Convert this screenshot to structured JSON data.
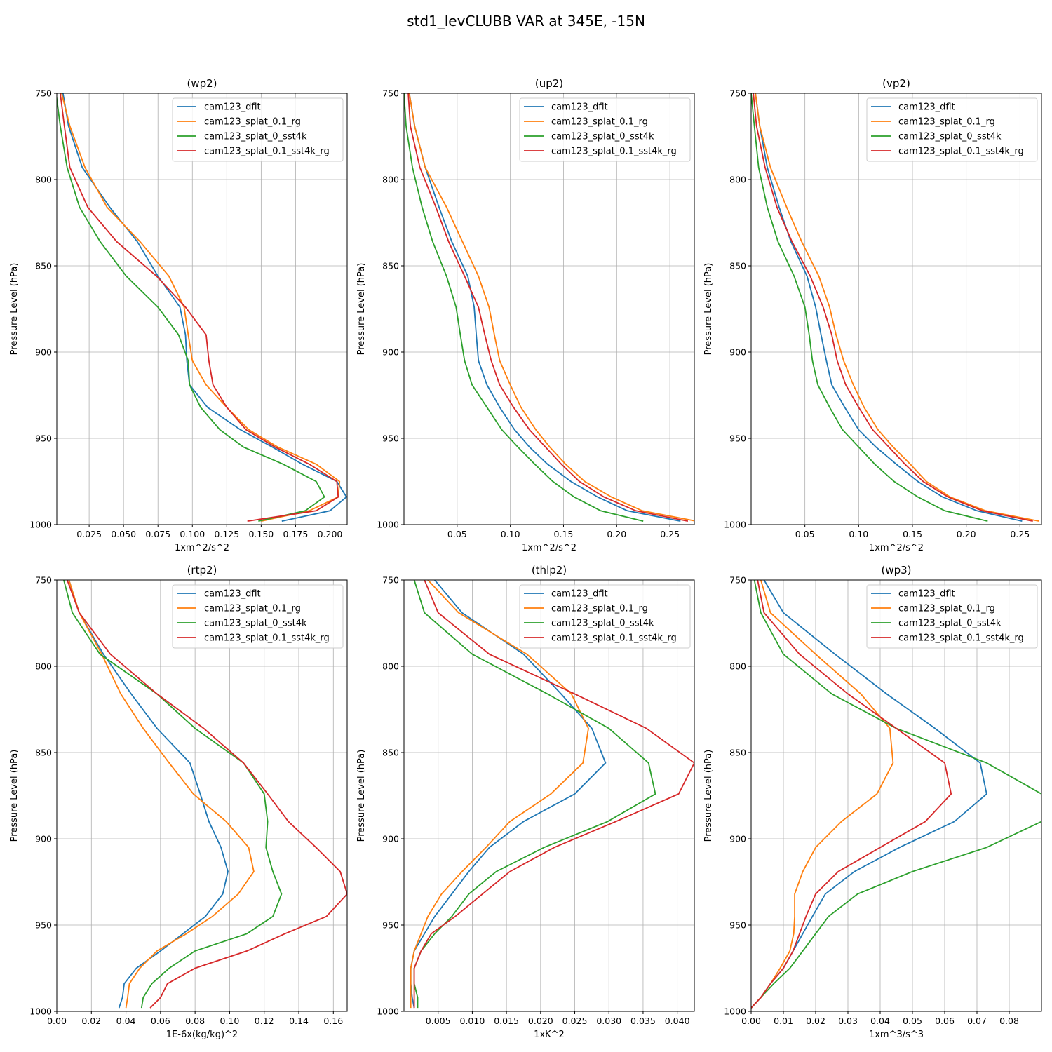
{
  "figure": {
    "title": "std1_levCLUBB VAR at 345E, -15N"
  },
  "series_names": [
    "cam123_dflt",
    "cam123_splat_0.1_rg",
    "cam123_splat_0_sst4k",
    "cam123_splat_0.1_sst4k_rg"
  ],
  "colors": {
    "cam123_dflt": "#1f77b4",
    "cam123_splat_0.1_rg": "#ff7f0e",
    "cam123_splat_0_sst4k": "#2ca02c",
    "cam123_splat_0.1_sst4k_rg": "#d62728"
  },
  "chart_data": [
    {
      "type": "line",
      "title": "(wp2)",
      "xlabel": "1xm^2/s^2",
      "ylabel": "Pressure Level (hPa)",
      "xlim": [
        0.0015,
        0.2125
      ],
      "ylim": [
        1000,
        750
      ],
      "xticks": [
        "0.025",
        "0.050",
        "0.075",
        "0.100",
        "0.125",
        "0.150",
        "0.175",
        "0.200"
      ],
      "xtick_values": [
        0.025,
        0.05,
        0.075,
        0.1,
        0.125,
        0.15,
        0.175,
        0.2
      ],
      "yticks": [
        "750",
        "800",
        "850",
        "900",
        "950",
        "1000"
      ],
      "ytick_values": [
        750,
        800,
        850,
        900,
        950,
        1000
      ],
      "grid": true,
      "legend": "top-right",
      "y": [
        750,
        769,
        793,
        816,
        836,
        856,
        874,
        890,
        905,
        919,
        932,
        945,
        955,
        965,
        975,
        984,
        992,
        998
      ],
      "series": [
        {
          "name": "cam123_dflt",
          "values": [
            0.006,
            0.01,
            0.02,
            0.04,
            0.06,
            0.075,
            0.091,
            0.095,
            0.096,
            0.098,
            0.111,
            0.135,
            0.158,
            0.18,
            0.205,
            0.212,
            0.2,
            0.165
          ]
        },
        {
          "name": "cam123_splat_0.1_rg",
          "values": [
            0.005,
            0.011,
            0.022,
            0.038,
            0.062,
            0.083,
            0.094,
            0.097,
            0.1,
            0.11,
            0.125,
            0.141,
            0.162,
            0.19,
            0.207,
            0.206,
            0.185,
            0.15
          ]
        },
        {
          "name": "cam123_splat_0_sst4k",
          "values": [
            0.001,
            0.004,
            0.009,
            0.018,
            0.033,
            0.052,
            0.075,
            0.09,
            0.097,
            0.098,
            0.106,
            0.12,
            0.137,
            0.166,
            0.19,
            0.196,
            0.182,
            0.148
          ]
        },
        {
          "name": "cam123_splat_0.1_sst4k_rg",
          "values": [
            0.004,
            0.007,
            0.011,
            0.024,
            0.045,
            0.074,
            0.095,
            0.11,
            0.112,
            0.115,
            0.125,
            0.139,
            0.16,
            0.185,
            0.205,
            0.206,
            0.19,
            0.14
          ]
        }
      ]
    },
    {
      "type": "line",
      "title": "(up2)",
      "xlabel": "1xm^2/s^2",
      "ylabel": "Pressure Level (hPa)",
      "xlim": [
        0.0,
        0.273
      ],
      "ylim": [
        1000,
        750
      ],
      "xticks": [
        "0.05",
        "0.10",
        "0.15",
        "0.20",
        "0.25"
      ],
      "xtick_values": [
        0.05,
        0.1,
        0.15,
        0.2,
        0.25
      ],
      "yticks": [
        "750",
        "800",
        "850",
        "900",
        "950",
        "1000"
      ],
      "ytick_values": [
        750,
        800,
        850,
        900,
        950,
        1000
      ],
      "grid": true,
      "legend": "top-right",
      "y": [
        750,
        769,
        793,
        816,
        836,
        856,
        874,
        890,
        905,
        919,
        932,
        945,
        955,
        965,
        975,
        984,
        992,
        998
      ],
      "series": [
        {
          "name": "cam123_dflt",
          "values": [
            0.005,
            0.01,
            0.02,
            0.033,
            0.045,
            0.06,
            0.066,
            0.068,
            0.07,
            0.078,
            0.09,
            0.104,
            0.118,
            0.135,
            0.157,
            0.182,
            0.21,
            0.26
          ]
        },
        {
          "name": "cam123_splat_0.1_rg",
          "values": [
            0.005,
            0.01,
            0.02,
            0.04,
            0.055,
            0.07,
            0.08,
            0.085,
            0.09,
            0.1,
            0.11,
            0.124,
            0.137,
            0.152,
            0.17,
            0.195,
            0.224,
            0.275
          ]
        },
        {
          "name": "cam123_splat_0_sst4k",
          "values": [
            0.0,
            0.002,
            0.008,
            0.017,
            0.027,
            0.04,
            0.049,
            0.053,
            0.057,
            0.064,
            0.078,
            0.092,
            0.107,
            0.123,
            0.14,
            0.16,
            0.185,
            0.225
          ]
        },
        {
          "name": "cam123_splat_0.1_sst4k_rg",
          "values": [
            0.004,
            0.006,
            0.015,
            0.03,
            0.042,
            0.057,
            0.07,
            0.076,
            0.082,
            0.09,
            0.103,
            0.118,
            0.133,
            0.148,
            0.165,
            0.188,
            0.218,
            0.267
          ]
        }
      ]
    },
    {
      "type": "line",
      "title": "(vp2)",
      "xlabel": "1xm^2/s^2",
      "ylabel": "Pressure Level (hPa)",
      "xlim": [
        0.0,
        0.27
      ],
      "ylim": [
        1000,
        750
      ],
      "xticks": [
        "0.05",
        "0.10",
        "0.15",
        "0.20",
        "0.25"
      ],
      "xtick_values": [
        0.05,
        0.1,
        0.15,
        0.2,
        0.25
      ],
      "yticks": [
        "750",
        "800",
        "850",
        "900",
        "950",
        "1000"
      ],
      "ytick_values": [
        750,
        800,
        850,
        900,
        950,
        1000
      ],
      "grid": true,
      "legend": "top-right",
      "y": [
        750,
        769,
        793,
        816,
        836,
        856,
        874,
        890,
        905,
        919,
        932,
        945,
        955,
        965,
        975,
        984,
        992,
        998
      ],
      "series": [
        {
          "name": "cam123_dflt",
          "values": [
            0.004,
            0.008,
            0.015,
            0.026,
            0.037,
            0.052,
            0.06,
            0.065,
            0.07,
            0.075,
            0.087,
            0.1,
            0.116,
            0.135,
            0.155,
            0.178,
            0.21,
            0.252
          ]
        },
        {
          "name": "cam123_splat_0.1_rg",
          "values": [
            0.004,
            0.008,
            0.018,
            0.033,
            0.047,
            0.063,
            0.073,
            0.079,
            0.086,
            0.095,
            0.105,
            0.118,
            0.132,
            0.148,
            0.163,
            0.185,
            0.218,
            0.268
          ]
        },
        {
          "name": "cam123_splat_0_sst4k",
          "values": [
            0.0,
            0.003,
            0.007,
            0.015,
            0.025,
            0.04,
            0.05,
            0.054,
            0.057,
            0.062,
            0.073,
            0.085,
            0.1,
            0.115,
            0.133,
            0.155,
            0.18,
            0.22
          ]
        },
        {
          "name": "cam123_splat_0.1_sst4k_rg",
          "values": [
            0.002,
            0.005,
            0.013,
            0.024,
            0.038,
            0.055,
            0.067,
            0.075,
            0.08,
            0.088,
            0.1,
            0.113,
            0.128,
            0.143,
            0.16,
            0.183,
            0.215,
            0.262
          ]
        }
      ]
    },
    {
      "type": "line",
      "title": "(rtp2)",
      "xlabel": "1E-6x(kg/kg)^2",
      "ylabel": "Pressure Level (hPa)",
      "xlim": [
        0.0,
        0.168
      ],
      "ylim": [
        1000,
        750
      ],
      "xticks": [
        "0.00",
        "0.02",
        "0.04",
        "0.06",
        "0.08",
        "0.10",
        "0.12",
        "0.14",
        "0.16"
      ],
      "xtick_values": [
        0.0,
        0.02,
        0.04,
        0.06,
        0.08,
        0.1,
        0.12,
        0.14,
        0.16
      ],
      "yticks": [
        "750",
        "800",
        "850",
        "900",
        "950",
        "1000"
      ],
      "ytick_values": [
        750,
        800,
        850,
        900,
        950,
        1000
      ],
      "grid": true,
      "legend": "top-right",
      "y": [
        750,
        769,
        793,
        816,
        836,
        856,
        874,
        890,
        905,
        919,
        932,
        945,
        955,
        965,
        975,
        984,
        992,
        998
      ],
      "series": [
        {
          "name": "cam123_dflt",
          "values": [
            0.007,
            0.013,
            0.027,
            0.043,
            0.058,
            0.077,
            0.083,
            0.088,
            0.095,
            0.099,
            0.096,
            0.086,
            0.073,
            0.06,
            0.046,
            0.039,
            0.038,
            0.036
          ]
        },
        {
          "name": "cam123_splat_0.1_rg",
          "values": [
            0.007,
            0.013,
            0.026,
            0.037,
            0.05,
            0.065,
            0.079,
            0.098,
            0.111,
            0.114,
            0.105,
            0.09,
            0.075,
            0.058,
            0.048,
            0.042,
            0.041,
            0.04
          ]
        },
        {
          "name": "cam123_splat_0_sst4k",
          "values": [
            0.004,
            0.009,
            0.025,
            0.058,
            0.08,
            0.108,
            0.12,
            0.122,
            0.121,
            0.125,
            0.13,
            0.125,
            0.11,
            0.08,
            0.065,
            0.055,
            0.05,
            0.049
          ]
        },
        {
          "name": "cam123_splat_0.1_sst4k_rg",
          "values": [
            0.006,
            0.013,
            0.031,
            0.058,
            0.085,
            0.108,
            0.122,
            0.134,
            0.15,
            0.164,
            0.168,
            0.156,
            0.132,
            0.11,
            0.08,
            0.064,
            0.06,
            0.054
          ]
        }
      ]
    },
    {
      "type": "line",
      "title": "(thlp2)",
      "xlabel": "1xK^2",
      "ylabel": "Pressure Level (hPa)",
      "xlim": [
        0.0,
        0.0425
      ],
      "ylim": [
        1000,
        750
      ],
      "xticks": [
        "0.005",
        "0.010",
        "0.015",
        "0.020",
        "0.025",
        "0.030",
        "0.035",
        "0.040"
      ],
      "xtick_values": [
        0.005,
        0.01,
        0.015,
        0.02,
        0.025,
        0.03,
        0.035,
        0.04
      ],
      "yticks": [
        "750",
        "800",
        "850",
        "900",
        "950",
        "1000"
      ],
      "ytick_values": [
        750,
        800,
        850,
        900,
        950,
        1000
      ],
      "grid": true,
      "legend": "top-right",
      "y": [
        750,
        769,
        793,
        816,
        836,
        856,
        874,
        890,
        905,
        919,
        932,
        945,
        955,
        965,
        975,
        984,
        992,
        998
      ],
      "series": [
        {
          "name": "cam123_dflt",
          "values": [
            0.0045,
            0.0085,
            0.0175,
            0.023,
            0.0275,
            0.0295,
            0.025,
            0.0175,
            0.0125,
            0.0095,
            0.007,
            0.0045,
            0.003,
            0.0015,
            0.001,
            0.001,
            0.0012,
            0.0015
          ]
        },
        {
          "name": "cam123_splat_0.1_rg",
          "values": [
            0.0035,
            0.008,
            0.018,
            0.0245,
            0.027,
            0.0262,
            0.0215,
            0.0155,
            0.012,
            0.0085,
            0.0055,
            0.0035,
            0.0025,
            0.0015,
            0.001,
            0.001,
            0.001,
            0.001
          ]
        },
        {
          "name": "cam123_splat_0_sst4k",
          "values": [
            0.0015,
            0.003,
            0.01,
            0.021,
            0.03,
            0.0358,
            0.0368,
            0.0298,
            0.0205,
            0.0135,
            0.0095,
            0.007,
            0.0045,
            0.0025,
            0.0015,
            0.0015,
            0.002,
            0.002
          ]
        },
        {
          "name": "cam123_splat_0.1_sst4k_rg",
          "values": [
            0.003,
            0.005,
            0.0125,
            0.025,
            0.0355,
            0.0425,
            0.0402,
            0.031,
            0.022,
            0.0155,
            0.0115,
            0.0075,
            0.004,
            0.0025,
            0.0015,
            0.0015,
            0.0015,
            0.0015
          ]
        }
      ]
    },
    {
      "type": "line",
      "title": "(wp3)",
      "xlabel": "1xm^3/s^3",
      "ylabel": "Pressure Level (hPa)",
      "xlim": [
        0.0,
        0.09
      ],
      "ylim": [
        1000,
        750
      ],
      "xticks": [
        "0.00",
        "0.01",
        "0.02",
        "0.03",
        "0.04",
        "0.05",
        "0.06",
        "0.07",
        "0.08"
      ],
      "xtick_values": [
        0.0,
        0.01,
        0.02,
        0.03,
        0.04,
        0.05,
        0.06,
        0.07,
        0.08
      ],
      "yticks": [
        "750",
        "800",
        "850",
        "900",
        "950",
        "1000"
      ],
      "ytick_values": [
        750,
        800,
        850,
        900,
        950,
        1000
      ],
      "grid": true,
      "legend": "top-right",
      "y": [
        750,
        769,
        793,
        816,
        836,
        856,
        874,
        890,
        905,
        919,
        932,
        945,
        955,
        965,
        975,
        984,
        992,
        998
      ],
      "series": [
        {
          "name": "cam123_dflt",
          "values": [
            0.004,
            0.01,
            0.026,
            0.042,
            0.057,
            0.071,
            0.073,
            0.063,
            0.046,
            0.032,
            0.023,
            0.019,
            0.016,
            0.013,
            0.01,
            0.006,
            0.003,
            0.0
          ]
        },
        {
          "name": "cam123_splat_0.1_rg",
          "values": [
            0.003,
            0.006,
            0.02,
            0.034,
            0.043,
            0.044,
            0.039,
            0.028,
            0.02,
            0.016,
            0.0135,
            0.0135,
            0.0132,
            0.012,
            0.009,
            0.006,
            0.003,
            0.0
          ]
        },
        {
          "name": "cam123_splat_0_sst4k",
          "values": [
            0.001,
            0.003,
            0.01,
            0.025,
            0.045,
            0.073,
            0.09,
            0.09,
            0.073,
            0.05,
            0.033,
            0.024,
            0.02,
            0.016,
            0.012,
            0.007,
            0.003,
            0.0
          ]
        },
        {
          "name": "cam123_splat_0.1_sst4k_rg",
          "values": [
            0.002,
            0.004,
            0.015,
            0.03,
            0.045,
            0.06,
            0.062,
            0.054,
            0.04,
            0.027,
            0.02,
            0.017,
            0.015,
            0.013,
            0.01,
            0.006,
            0.003,
            0.0
          ]
        }
      ]
    }
  ]
}
